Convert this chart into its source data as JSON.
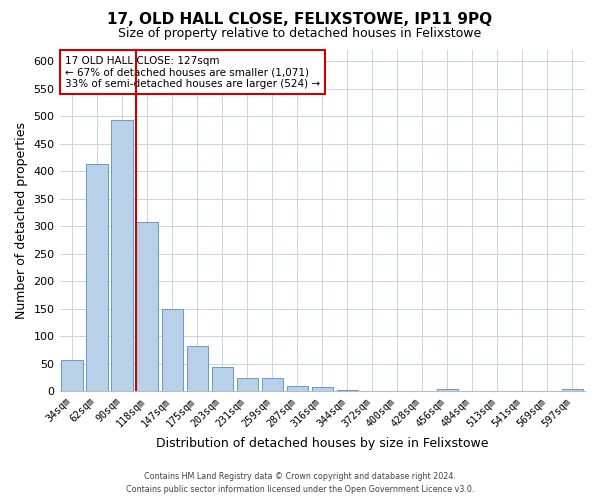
{
  "title": "17, OLD HALL CLOSE, FELIXSTOWE, IP11 9PQ",
  "subtitle": "Size of property relative to detached houses in Felixstowe",
  "xlabel": "Distribution of detached houses by size in Felixstowe",
  "ylabel": "Number of detached properties",
  "bar_labels": [
    "34sqm",
    "62sqm",
    "90sqm",
    "118sqm",
    "147sqm",
    "175sqm",
    "203sqm",
    "231sqm",
    "259sqm",
    "287sqm",
    "316sqm",
    "344sqm",
    "372sqm",
    "400sqm",
    "428sqm",
    "456sqm",
    "484sqm",
    "513sqm",
    "541sqm",
    "569sqm",
    "597sqm"
  ],
  "bar_values": [
    57,
    413,
    493,
    308,
    150,
    82,
    45,
    25,
    25,
    10,
    8,
    2,
    0,
    0,
    0,
    5,
    0,
    0,
    0,
    0,
    5
  ],
  "bar_color": "#b8d0e8",
  "bar_edge_color": "#6699cc",
  "ylim": [
    0,
    620
  ],
  "yticks": [
    0,
    50,
    100,
    150,
    200,
    250,
    300,
    350,
    400,
    450,
    500,
    550,
    600
  ],
  "property_line_color": "#cc0000",
  "property_line_index": 3,
  "annotation_title": "17 OLD HALL CLOSE: 127sqm",
  "annotation_line1": "← 67% of detached houses are smaller (1,071)",
  "annotation_line2": "33% of semi-detached houses are larger (524) →",
  "annotation_box_color": "#cc0000",
  "footer_line1": "Contains HM Land Registry data © Crown copyright and database right 2024.",
  "footer_line2": "Contains public sector information licensed under the Open Government Licence v3.0.",
  "background_color": "#ffffff",
  "grid_color": "#c8d4e4"
}
